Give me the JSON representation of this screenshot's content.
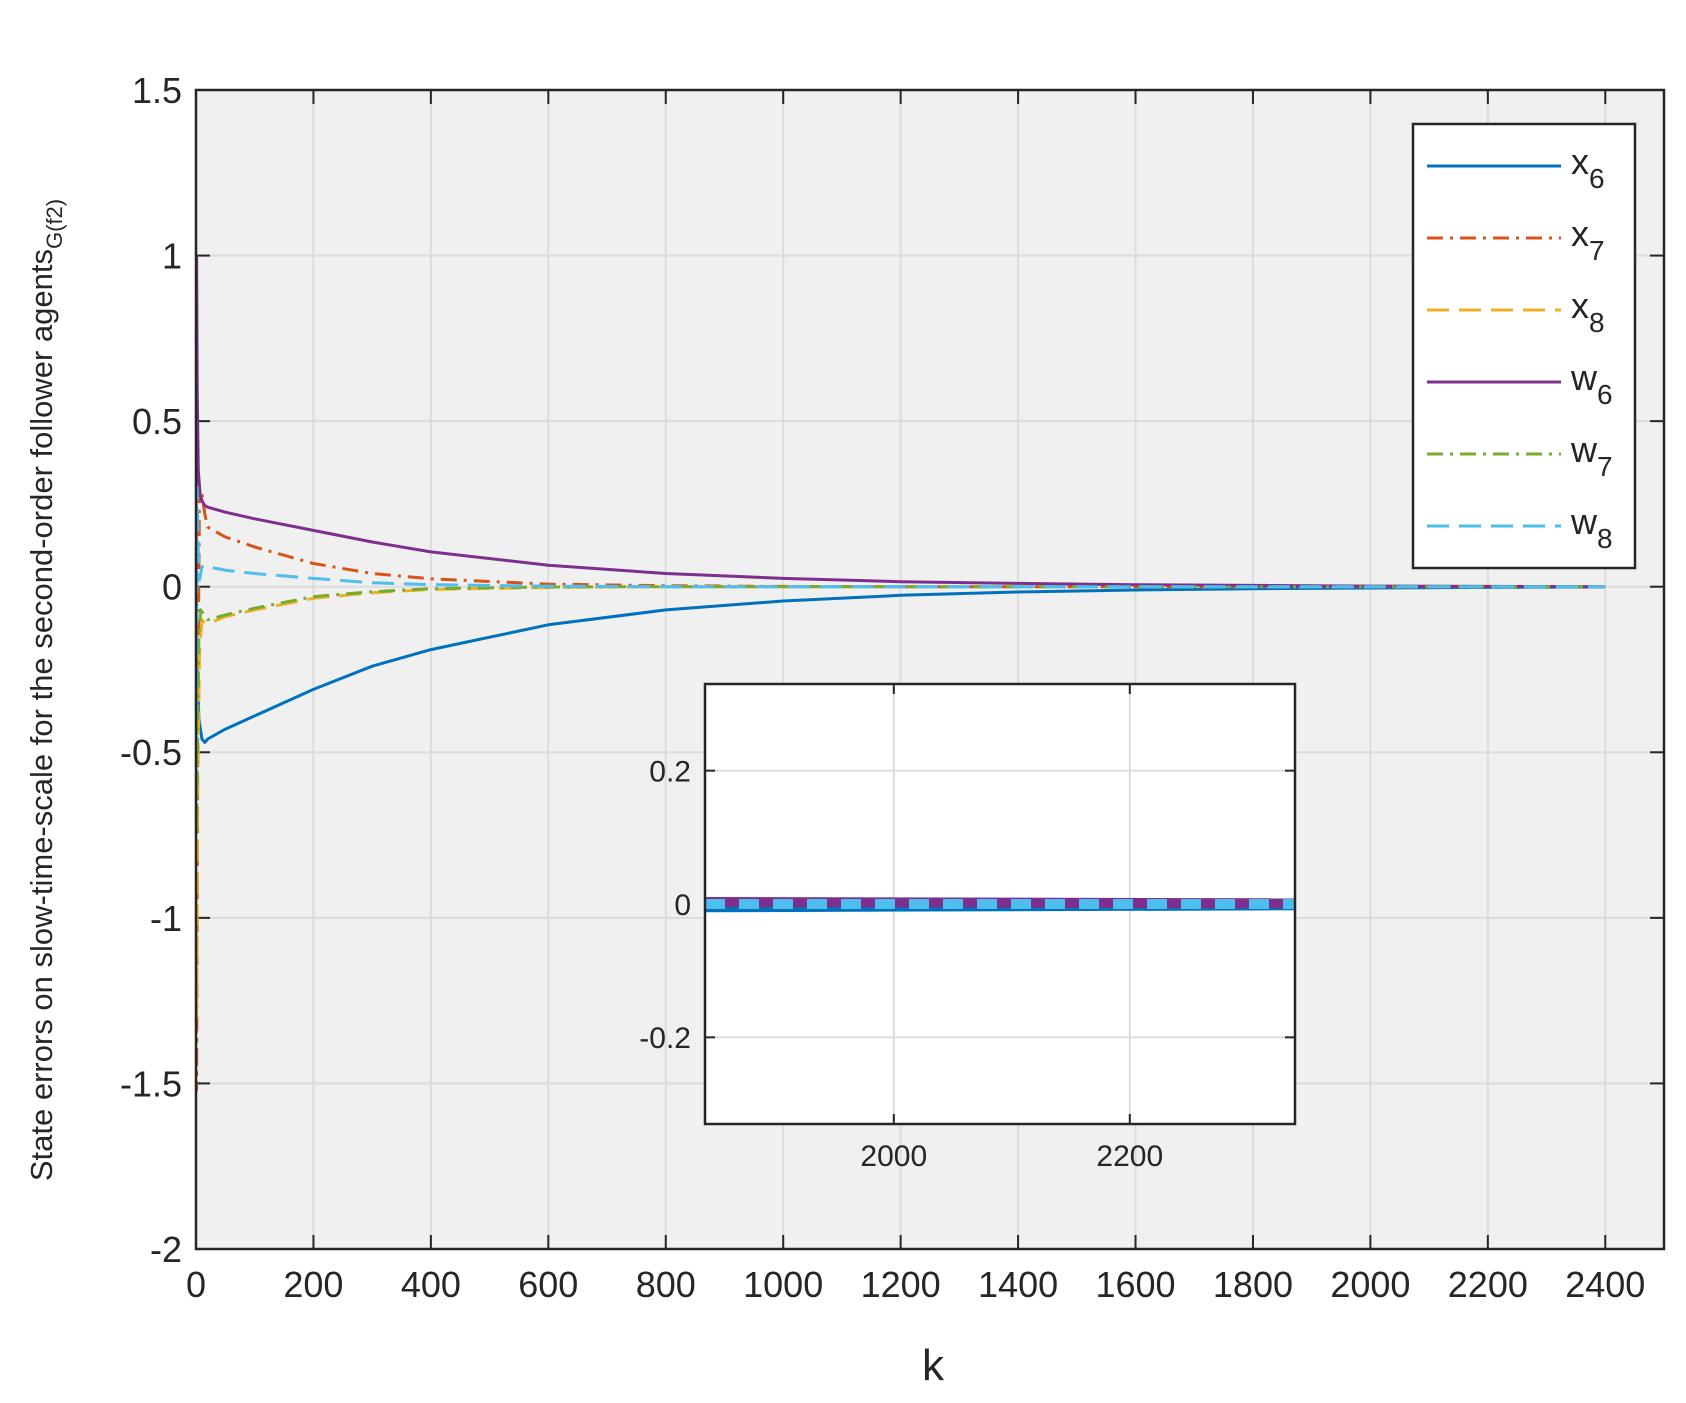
{
  "chart_data": [
    {
      "type": "line",
      "title": "",
      "xlabel": "k",
      "ylabel": "State errors on slow-time-scale for the second-order follower agents",
      "ylabel_subscript": "G(f2)",
      "xlim": [
        0,
        2500
      ],
      "ylim": [
        -2,
        1.5
      ],
      "xticks": [
        0,
        200,
        400,
        600,
        800,
        1000,
        1200,
        1400,
        1600,
        1800,
        2000,
        2200,
        2400
      ],
      "yticks": [
        -2,
        -1.5,
        -1,
        -0.5,
        0,
        0.5,
        1,
        1.5
      ],
      "xtick_labels": [
        "0",
        "200",
        "400",
        "600",
        "800",
        "1000",
        "1200",
        "1400",
        "1600",
        "1800",
        "2000",
        "2200",
        "2400"
      ],
      "ytick_labels": [
        "-2",
        "-1.5",
        "-1",
        "-0.5",
        "0",
        "0.5",
        "1",
        "1.5"
      ],
      "grid": true,
      "legend_position": "top-right",
      "series": [
        {
          "name": "x",
          "subscript": "6",
          "color": "#0072BD",
          "style": "solid",
          "x": [
            0,
            2,
            5,
            10,
            15,
            20,
            50,
            100,
            200,
            300,
            400,
            600,
            800,
            1000,
            1200,
            1400,
            1600,
            1800,
            2000,
            2200,
            2400
          ],
          "y": [
            0.0,
            -0.25,
            -0.4,
            -0.46,
            -0.47,
            -0.46,
            -0.43,
            -0.39,
            -0.31,
            -0.24,
            -0.19,
            -0.115,
            -0.07,
            -0.043,
            -0.026,
            -0.016,
            -0.01,
            -0.006,
            -0.004,
            -0.002,
            -0.001
          ]
        },
        {
          "name": "x",
          "subscript": "7",
          "color": "#D95319",
          "style": "dashdot",
          "x": [
            0,
            1,
            3,
            6,
            10,
            15,
            20,
            50,
            100,
            200,
            300,
            400,
            600,
            800,
            1000,
            1200,
            1600,
            2000,
            2400
          ],
          "y": [
            -1.2,
            -1.52,
            -0.4,
            0.3,
            0.28,
            0.22,
            0.18,
            0.15,
            0.12,
            0.07,
            0.04,
            0.024,
            0.008,
            0.003,
            0.001,
            0.0,
            0.0,
            0.0,
            0.0
          ]
        },
        {
          "name": "x",
          "subscript": "8",
          "color": "#EDB120",
          "style": "dashed",
          "x": [
            0,
            1,
            3,
            6,
            10,
            15,
            20,
            30,
            50,
            100,
            200,
            300,
            400,
            600,
            800,
            1000,
            1400,
            2000,
            2400
          ],
          "y": [
            -0.9,
            -1.3,
            -0.6,
            -0.2,
            -0.1,
            -0.11,
            -0.11,
            -0.105,
            -0.09,
            -0.07,
            -0.035,
            -0.018,
            -0.008,
            -0.002,
            0.0,
            0.0,
            0.0,
            0.0,
            0.0
          ]
        },
        {
          "name": "w",
          "subscript": "6",
          "color": "#7E2F8E",
          "style": "solid",
          "x": [
            0,
            1,
            2,
            4,
            7,
            10,
            15,
            20,
            50,
            100,
            200,
            300,
            400,
            600,
            800,
            1000,
            1200,
            1400,
            1600,
            1800,
            2000,
            2200,
            2400
          ],
          "y": [
            0.0,
            1.0,
            0.6,
            0.35,
            0.28,
            0.26,
            0.245,
            0.24,
            0.225,
            0.205,
            0.17,
            0.135,
            0.105,
            0.065,
            0.04,
            0.025,
            0.015,
            0.01,
            0.006,
            0.004,
            0.002,
            0.001,
            0.0
          ]
        },
        {
          "name": "w",
          "subscript": "7",
          "color": "#77AC30",
          "style": "dashdot",
          "x": [
            0,
            1,
            3,
            5,
            8,
            12,
            15,
            20,
            30,
            50,
            100,
            200,
            300,
            400,
            600,
            800,
            1200,
            2000,
            2400
          ],
          "y": [
            0.0,
            -0.75,
            -0.4,
            -0.15,
            -0.07,
            -0.08,
            -0.09,
            -0.1,
            -0.095,
            -0.085,
            -0.065,
            -0.03,
            -0.015,
            -0.006,
            -0.001,
            0.0,
            0.0,
            0.0,
            0.0
          ]
        },
        {
          "name": "w",
          "subscript": "8",
          "color": "#4DBEEE",
          "style": "dashed",
          "x": [
            0,
            1,
            2,
            4,
            6,
            10,
            15,
            20,
            50,
            100,
            200,
            300,
            400,
            600,
            800,
            1000,
            1400,
            2000,
            2400
          ],
          "y": [
            -0.6,
            -0.2,
            0.3,
            0.1,
            0.02,
            0.06,
            0.065,
            0.06,
            0.05,
            0.04,
            0.025,
            0.012,
            0.006,
            0.0015,
            0.0,
            0.0,
            0.0,
            0.0,
            0.0
          ]
        }
      ]
    },
    {
      "type": "line",
      "title": "",
      "xlim": [
        1840,
        2340
      ],
      "ylim": [
        -0.33,
        0.33
      ],
      "xticks": [
        2000,
        2200
      ],
      "yticks": [
        -0.2,
        0,
        0.2
      ],
      "xtick_labels": [
        "2000",
        "2200"
      ],
      "ytick_labels": [
        "-0.2",
        "0",
        "0.2"
      ],
      "grid": true,
      "series": [
        {
          "name": "x6",
          "color": "#0072BD",
          "style": "solid",
          "x": [
            1840,
            2340
          ],
          "y": [
            -0.005,
            -0.002
          ]
        },
        {
          "name": "x7",
          "color": "#D95319",
          "style": "dashdot",
          "x": [
            1840,
            2340
          ],
          "y": [
            0.0,
            0.0
          ]
        },
        {
          "name": "x8",
          "color": "#EDB120",
          "style": "dashed",
          "x": [
            1840,
            2340
          ],
          "y": [
            0.0,
            0.0
          ]
        },
        {
          "name": "w6",
          "color": "#7E2F8E",
          "style": "solid",
          "x": [
            1840,
            2340
          ],
          "y": [
            0.003,
            0.001
          ]
        },
        {
          "name": "w7",
          "color": "#77AC30",
          "style": "dashdot",
          "x": [
            1840,
            2340
          ],
          "y": [
            0.0,
            0.0
          ]
        },
        {
          "name": "w8",
          "color": "#4DBEEE",
          "style": "dashed",
          "x": [
            1840,
            2340
          ],
          "y": [
            0.0,
            0.0
          ]
        }
      ]
    }
  ]
}
